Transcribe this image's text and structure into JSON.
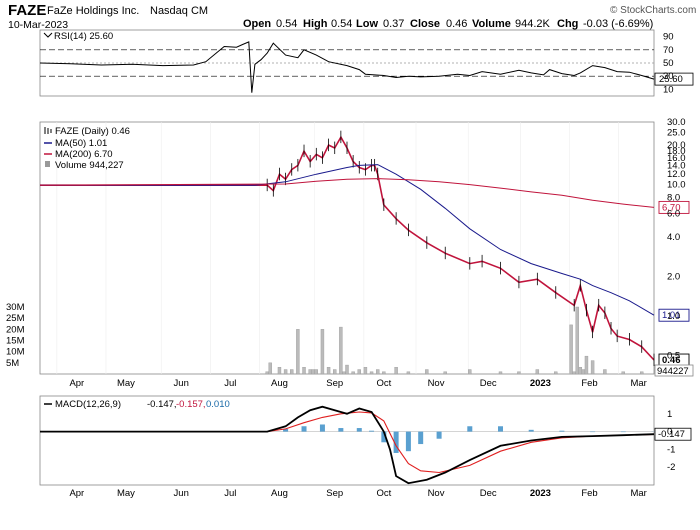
{
  "header": {
    "symbol": "FAZE",
    "company": "FaZe Holdings Inc.",
    "exchange": "Nasdaq CM",
    "date": "10-Mar-2023",
    "open_label": "Open",
    "open": "0.54",
    "high_label": "High",
    "high": "0.54",
    "low_label": "Low",
    "low": "0.37",
    "close_label": "Close",
    "close": "0.46",
    "volume_label": "Volume",
    "volume": "944.2K",
    "chg_label": "Chg",
    "chg": "-0.03 (-6.69%)",
    "watermark": "© StockCharts.com"
  },
  "chart_data": [
    {
      "type": "line",
      "panel": "RSI",
      "legend": "RSI(14) 25.60",
      "ylim": [
        0,
        100
      ],
      "ticks": [
        10,
        30,
        50,
        70,
        90
      ],
      "reference_lines": [
        30,
        50,
        70
      ],
      "last_value_label": "25.60",
      "series": [
        {
          "name": "RSI(14)",
          "x": [
            0.0,
            0.05,
            0.1,
            0.15,
            0.2,
            0.25,
            0.27,
            0.3,
            0.32,
            0.33,
            0.34,
            0.345,
            0.35,
            0.36,
            0.37,
            0.38,
            0.4,
            0.42,
            0.43,
            0.45,
            0.47,
            0.5,
            0.52,
            0.53,
            0.56,
            0.58,
            0.6,
            0.62,
            0.65,
            0.68,
            0.7,
            0.72,
            0.75,
            0.78,
            0.8,
            0.82,
            0.83,
            0.85,
            0.87,
            0.88,
            0.9,
            0.92,
            0.94,
            0.96,
            0.98,
            1.0
          ],
          "values": [
            50,
            49,
            47,
            48,
            46,
            47,
            52,
            75,
            74,
            78,
            82,
            5,
            48,
            55,
            65,
            80,
            62,
            58,
            70,
            62,
            52,
            46,
            40,
            33,
            31,
            28,
            30,
            29,
            30,
            33,
            31,
            37,
            33,
            39,
            35,
            32,
            40,
            34,
            31,
            35,
            46,
            43,
            37,
            36,
            31,
            25.6
          ]
        }
      ]
    },
    {
      "type": "line",
      "panel": "Price",
      "scale": "log",
      "legend": [
        "FAZE (Daily) 0.46",
        "MA(50) 1.01",
        "MA(200) 6.70",
        "Volume 944,227"
      ],
      "ylim": [
        0.36,
        30
      ],
      "ticks": [
        0.5,
        1.0,
        2.0,
        4.0,
        6.0,
        8.0,
        10.0,
        12.0,
        14.0,
        16.0,
        18.0,
        20.0,
        25.0,
        30.0
      ],
      "x_ticks": [
        "Apr",
        "May",
        "Jun",
        "Jul",
        "Aug",
        "Sep",
        "Oct",
        "Nov",
        "Dec",
        "2023",
        "Feb",
        "Mar"
      ],
      "right_labels": {
        "ma200": "6.70",
        "ma50": "1.01",
        "close": "0.46",
        "volume": "944227"
      },
      "series": [
        {
          "name": "FAZE (Daily)",
          "x": [
            0.0,
            0.37,
            0.38,
            0.39,
            0.4,
            0.41,
            0.42,
            0.43,
            0.44,
            0.45,
            0.46,
            0.47,
            0.48,
            0.49,
            0.5,
            0.51,
            0.52,
            0.53,
            0.54,
            0.545,
            0.55,
            0.56,
            0.58,
            0.6,
            0.63,
            0.66,
            0.7,
            0.72,
            0.75,
            0.78,
            0.81,
            0.84,
            0.87,
            0.88,
            0.89,
            0.9,
            0.91,
            0.92,
            0.93,
            0.94,
            0.96,
            0.98,
            1.0
          ],
          "values": [
            9.9,
            9.9,
            9.0,
            12,
            11,
            13,
            14,
            18,
            15,
            17,
            16,
            20,
            19,
            23,
            19,
            15,
            13.5,
            13,
            14,
            14,
            12,
            7,
            5.5,
            4.5,
            3.6,
            3.0,
            2.5,
            2.6,
            2.3,
            1.8,
            1.9,
            1.5,
            1.2,
            1.7,
            1.1,
            0.75,
            1.2,
            1.05,
            0.8,
            0.7,
            0.66,
            0.58,
            0.46
          ]
        },
        {
          "name": "MA(50)",
          "x": [
            0.0,
            0.35,
            0.4,
            0.45,
            0.5,
            0.52,
            0.55,
            0.58,
            0.62,
            0.66,
            0.7,
            0.75,
            0.8,
            0.85,
            0.88,
            0.9,
            0.93,
            0.96,
            1.0
          ],
          "values": [
            9.9,
            9.9,
            10.5,
            12,
            13.5,
            14,
            14.2,
            12,
            9.2,
            6.6,
            4.6,
            3.2,
            2.5,
            2.1,
            1.9,
            1.7,
            1.5,
            1.3,
            1.01
          ]
        },
        {
          "name": "MA(200)",
          "x": [
            0.0,
            0.4,
            0.45,
            0.5,
            0.55,
            0.6,
            0.65,
            0.7,
            0.75,
            0.8,
            0.85,
            0.9,
            0.95,
            1.0
          ],
          "values": [
            9.9,
            10.1,
            10.6,
            11.0,
            11.1,
            10.9,
            10.5,
            10.0,
            9.4,
            8.8,
            8.3,
            7.6,
            7.1,
            6.7
          ]
        }
      ]
    },
    {
      "type": "bar",
      "panel": "Volume",
      "ylim": [
        0,
        30
      ],
      "ticks": [
        5,
        10,
        15,
        20,
        25,
        30
      ],
      "tick_labels": [
        "5M",
        "10M",
        "15M",
        "20M",
        "25M",
        "30M"
      ],
      "x": [
        0.37,
        0.375,
        0.39,
        0.4,
        0.41,
        0.42,
        0.43,
        0.44,
        0.445,
        0.45,
        0.46,
        0.47,
        0.48,
        0.49,
        0.495,
        0.5,
        0.51,
        0.52,
        0.53,
        0.54,
        0.55,
        0.56,
        0.58,
        0.6,
        0.63,
        0.66,
        0.7,
        0.75,
        0.78,
        0.81,
        0.84,
        0.865,
        0.87,
        0.875,
        0.88,
        0.885,
        0.89,
        0.9,
        0.92,
        0.95,
        0.98
      ],
      "values": [
        1,
        5,
        3,
        2,
        2,
        20,
        3,
        2,
        2,
        2,
        20,
        3,
        2,
        21,
        1,
        4,
        1,
        2,
        3,
        1,
        2,
        1,
        3,
        1,
        2,
        1,
        2,
        1,
        1,
        2,
        1,
        22,
        1,
        30,
        3,
        2,
        8,
        6,
        2,
        1,
        1
      ]
    },
    {
      "type": "line",
      "panel": "MACD",
      "legend": [
        "MACD(12,26,9)",
        "-0.147,",
        "-0.157,",
        "0.010"
      ],
      "ylim": [
        -3,
        2
      ],
      "ticks": [
        -2,
        -1,
        0,
        1
      ],
      "x_ticks": [
        "Apr",
        "May",
        "Jun",
        "Jul",
        "Aug",
        "Sep",
        "Oct",
        "Nov",
        "Dec",
        "2023",
        "Feb",
        "Mar"
      ],
      "last_value_label": "-0.147",
      "series": [
        {
          "name": "MACD",
          "x": [
            0.0,
            0.37,
            0.4,
            0.42,
            0.44,
            0.46,
            0.48,
            0.5,
            0.52,
            0.54,
            0.56,
            0.57,
            0.58,
            0.6,
            0.63,
            0.66,
            0.7,
            0.75,
            0.8,
            0.85,
            0.9,
            0.95,
            1.0
          ],
          "values": [
            0,
            0,
            0.3,
            0.8,
            1.2,
            1.4,
            1.2,
            1.0,
            1.3,
            1.1,
            0.0,
            -1.0,
            -2.5,
            -2.9,
            -2.7,
            -2.3,
            -1.6,
            -0.8,
            -0.5,
            -0.3,
            -0.25,
            -0.2,
            -0.147
          ]
        },
        {
          "name": "Signal",
          "x": [
            0.0,
            0.37,
            0.4,
            0.43,
            0.46,
            0.49,
            0.52,
            0.54,
            0.56,
            0.58,
            0.6,
            0.62,
            0.65,
            0.7,
            0.75,
            0.8,
            0.85,
            0.9,
            0.95,
            1.0
          ],
          "values": [
            0,
            0,
            0.15,
            0.5,
            0.8,
            1.0,
            1.1,
            1.05,
            0.6,
            -0.8,
            -1.8,
            -2.2,
            -2.3,
            -1.9,
            -1.1,
            -0.6,
            -0.35,
            -0.25,
            -0.2,
            -0.157
          ]
        },
        {
          "name": "Histogram",
          "x": [
            0.4,
            0.43,
            0.46,
            0.49,
            0.52,
            0.54,
            0.56,
            0.58,
            0.6,
            0.62,
            0.65,
            0.7,
            0.75,
            0.8,
            0.85,
            0.9,
            0.95,
            1.0
          ],
          "values": [
            0.15,
            0.3,
            0.4,
            0.2,
            0.2,
            0.05,
            -0.6,
            -1.2,
            -1.1,
            -0.7,
            -0.4,
            0.3,
            0.3,
            0.1,
            0.05,
            0.0,
            0.0,
            0.01
          ]
        }
      ]
    }
  ]
}
